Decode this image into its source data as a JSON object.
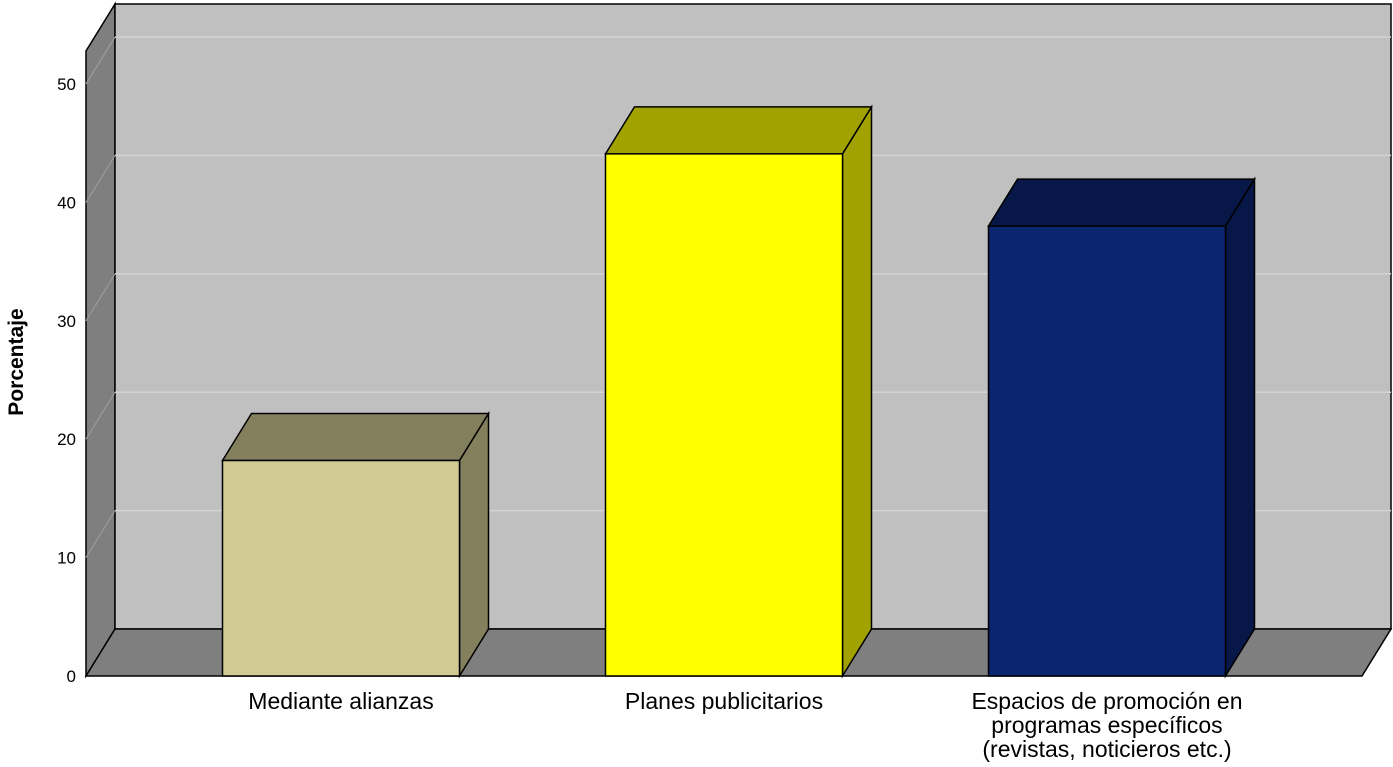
{
  "chart_data": {
    "type": "bar",
    "ylabel": "Porcentaje",
    "ylim": [
      0,
      55
    ],
    "yticks": [
      0,
      10,
      20,
      30,
      40,
      50
    ],
    "categories": [
      [
        "Mediante alianzas"
      ],
      [
        "Planes publicitarios"
      ],
      [
        "Espacios de promoción en",
        "programas específicos",
        "(revistas, noticieros etc.)"
      ]
    ],
    "values": [
      18.2,
      44.1,
      38.0
    ],
    "colors": [
      "#d1cb93",
      "#ffff00",
      "#0b2570"
    ],
    "grid": true,
    "wall_color": "#c0c0c0",
    "floor_color": "#7f7f7f"
  }
}
